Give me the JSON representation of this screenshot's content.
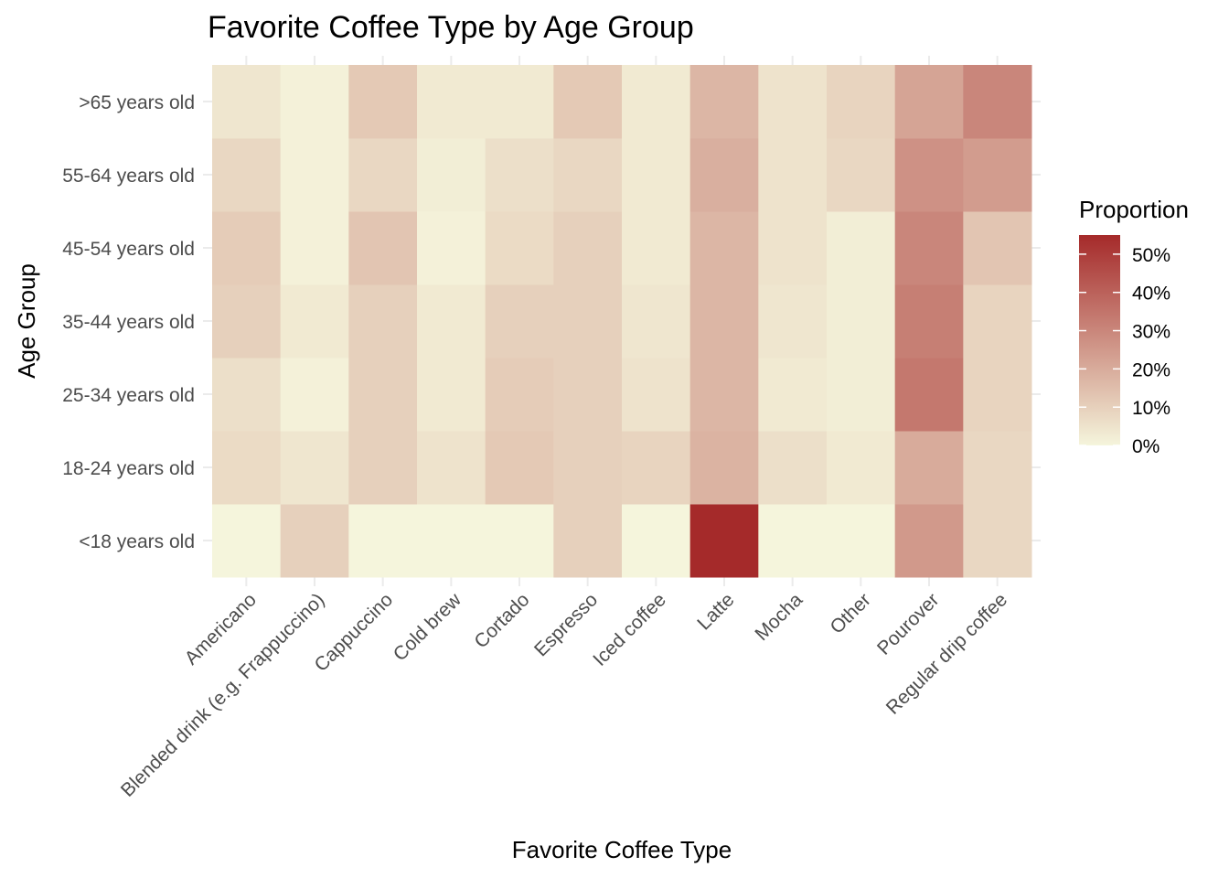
{
  "chart_data": {
    "type": "heatmap",
    "title": "Favorite Coffee Type by Age Group",
    "xlabel": "Favorite Coffee Type",
    "ylabel": "Age Group",
    "x_categories": [
      "Americano",
      "Blended drink (e.g. Frappuccino)",
      "Cappuccino",
      "Cold brew",
      "Cortado",
      "Espresso",
      "Iced coffee",
      "Latte",
      "Mocha",
      "Other",
      "Pourover",
      "Regular drip coffee"
    ],
    "y_categories": [
      "<18 years old",
      "18-24 years old",
      "25-34 years old",
      "35-44 years old",
      "45-54 years old",
      "55-64 years old",
      ">65 years old"
    ],
    "values": [
      [
        0.0,
        10.0,
        0.0,
        0.0,
        0.0,
        10.0,
        0.0,
        55.0,
        0.0,
        0.0,
        25.0,
        8.0
      ],
      [
        7.0,
        4.0,
        10.0,
        5.0,
        12.0,
        10.0,
        9.0,
        18.0,
        6.0,
        3.0,
        20.0,
        8.0
      ],
      [
        6.0,
        1.0,
        10.0,
        3.0,
        11.0,
        10.0,
        5.0,
        17.0,
        3.0,
        2.0,
        34.0,
        9.0
      ],
      [
        10.0,
        3.0,
        10.0,
        3.0,
        10.0,
        10.0,
        4.0,
        17.0,
        4.0,
        2.0,
        32.0,
        9.0
      ],
      [
        11.0,
        1.0,
        13.0,
        1.0,
        7.0,
        10.0,
        3.0,
        17.0,
        5.0,
        2.0,
        30.0,
        13.0
      ],
      [
        8.0,
        1.0,
        8.0,
        2.0,
        6.0,
        8.0,
        3.0,
        19.0,
        5.0,
        8.0,
        27.0,
        24.0
      ],
      [
        4.0,
        1.0,
        12.0,
        3.0,
        3.0,
        12.0,
        3.0,
        17.0,
        5.0,
        9.0,
        22.0,
        30.0
      ]
    ],
    "color_scale": {
      "low": "#f5f5dc",
      "high": "#a52a2a",
      "limits": [
        0,
        55
      ]
    },
    "legend": {
      "title": "Proportion",
      "placement": "right",
      "ticks": [
        0,
        10,
        20,
        30,
        40,
        50
      ],
      "tick_labels": [
        "0%",
        "10%",
        "20%",
        "30%",
        "40%",
        "50%"
      ]
    },
    "grid": true
  }
}
